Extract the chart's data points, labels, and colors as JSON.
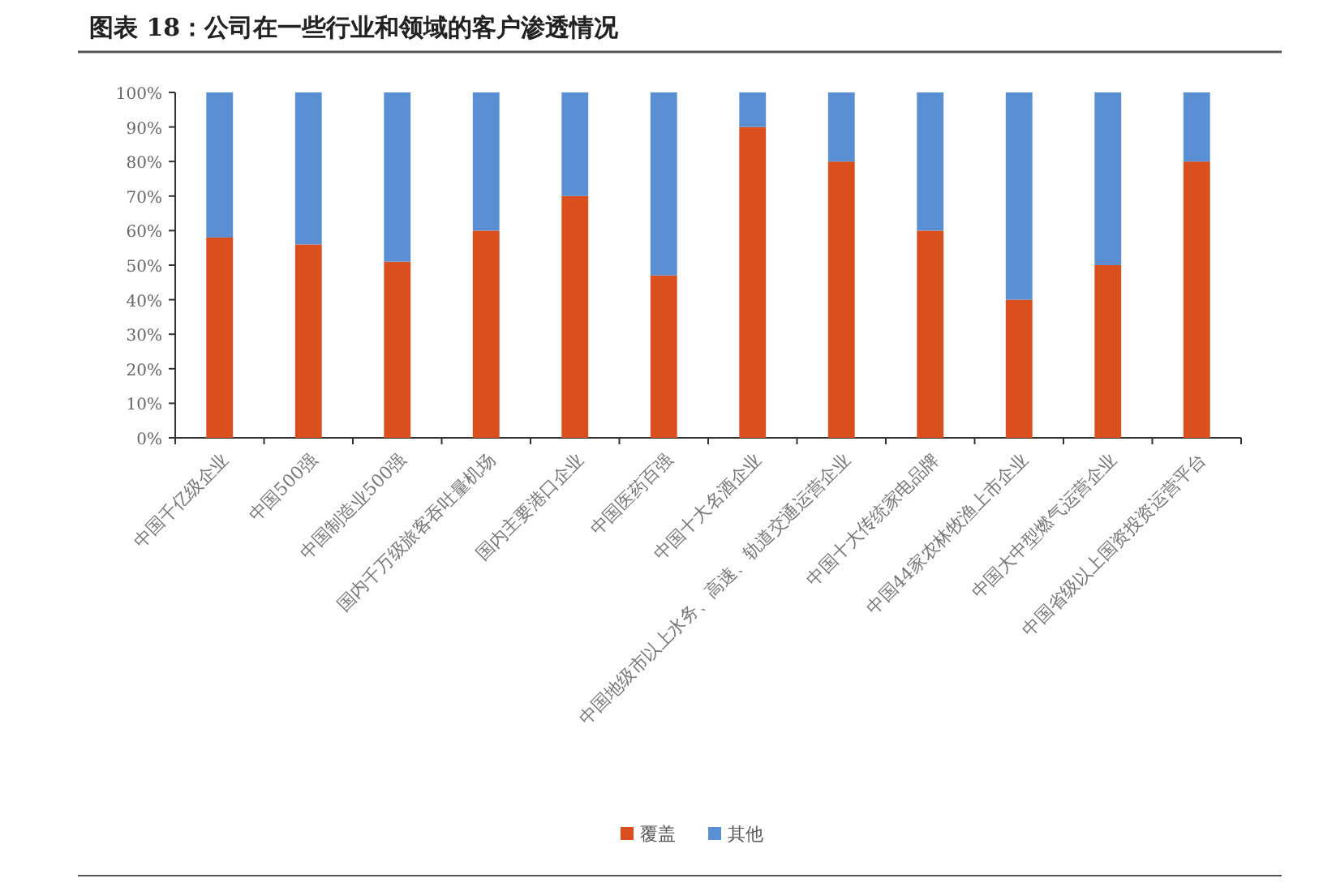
{
  "chart_data": {
    "type": "bar",
    "title": "图表 18：公司在一些行业和领域的客户渗透情况",
    "categories": [
      "中国千亿级企业",
      "中国500强",
      "中国制造业500强",
      "国内千万级旅客吞吐量机场",
      "国内主要港口企业",
      "中国医药百强",
      "中国十大名酒企业",
      "中国地级市以上水务、高速、轨道交通运营企业",
      "中国十大传统家电品牌",
      "中国44家农林牧渔上市企业",
      "中国大中型燃气运营企业",
      "中国省级以上国资投资运营平台"
    ],
    "series": [
      {
        "name": "覆盖",
        "color": "#d94f1e",
        "values": [
          58,
          56,
          51,
          60,
          70,
          47,
          90,
          80,
          60,
          40,
          50,
          80
        ]
      },
      {
        "name": "其他",
        "color": "#5b8fd4",
        "values": [
          42,
          44,
          49,
          40,
          30,
          53,
          10,
          20,
          40,
          60,
          50,
          20
        ]
      }
    ],
    "stacked": true,
    "ylim": [
      0,
      100
    ],
    "yticks": [
      {
        "value": 0,
        "label": "0%"
      },
      {
        "value": 10,
        "label": "10%"
      },
      {
        "value": 20,
        "label": "20%"
      },
      {
        "value": 30,
        "label": "30%"
      },
      {
        "value": 40,
        "label": "40%"
      },
      {
        "value": 50,
        "label": "50%"
      },
      {
        "value": 60,
        "label": "60%"
      },
      {
        "value": 70,
        "label": "70%"
      },
      {
        "value": 80,
        "label": "80%"
      },
      {
        "value": 90,
        "label": "90%"
      },
      {
        "value": 100,
        "label": "100%"
      }
    ],
    "legend": "bottom"
  }
}
